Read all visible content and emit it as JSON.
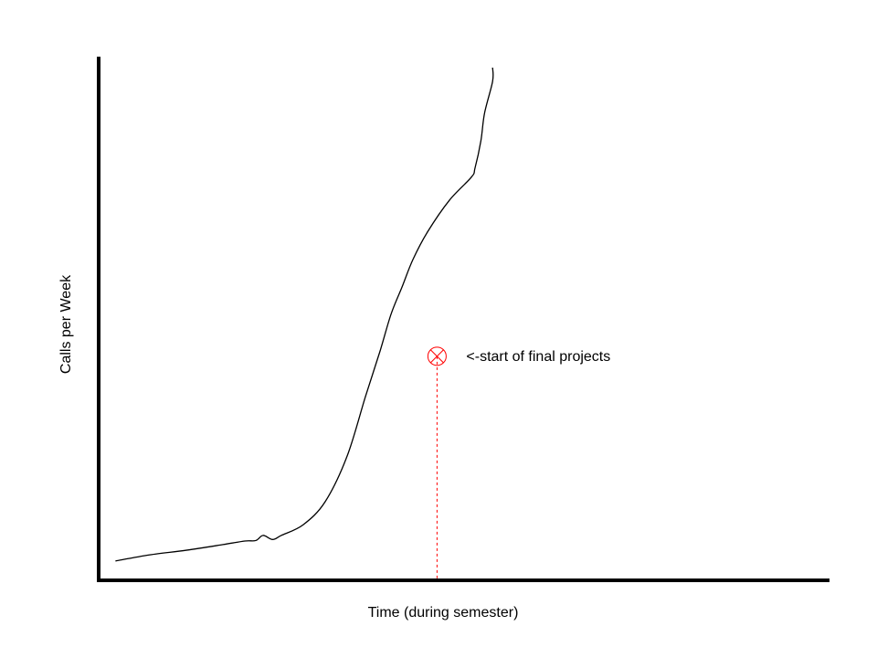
{
  "chart_data": {
    "type": "line",
    "title": "",
    "xlabel": "Time (during semester)",
    "ylabel": "Calls per Week",
    "xlim": [
      0,
      100
    ],
    "ylim": [
      0,
      100
    ],
    "grid": false,
    "legend": "none",
    "series": [
      {
        "x": [
          2.3,
          7,
          12,
          17,
          20,
          21.5,
          22.5,
          23.8,
          25,
          28,
          31,
          34,
          36.5,
          38.5,
          40,
          41.5,
          43,
          45,
          48,
          51,
          51.5,
          52.3,
          52.8,
          53.9,
          53.9
        ],
        "y": [
          3.6,
          4.8,
          5.7,
          6.8,
          7.5,
          7.6,
          8.6,
          7.8,
          8.6,
          10.7,
          15.2,
          24.1,
          35.7,
          44.6,
          51.8,
          57.1,
          62.5,
          67.9,
          74.1,
          78.6,
          80.4,
          85.7,
          91.1,
          97.3,
          100
        ]
      }
    ],
    "annotation": {
      "text": "<-start of final projects",
      "x": 46.3,
      "y": 43.6
    },
    "colors": {
      "axis": "#000000",
      "line": "#000000",
      "marker": "#ff0000"
    }
  }
}
